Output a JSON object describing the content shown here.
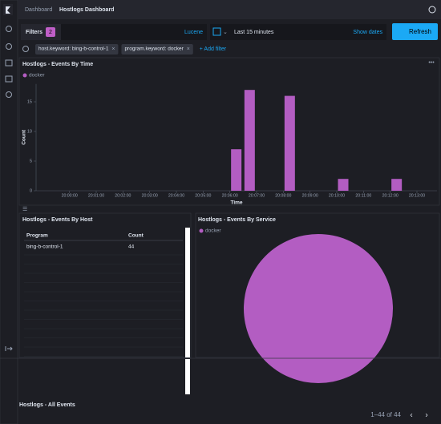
{
  "header": {
    "breadcrumbs": [
      "Dashboard",
      "Hostlogs Dashboard"
    ]
  },
  "query_bar": {
    "filters_label": "Filters",
    "filter_count": 2,
    "language": "Lucene",
    "time_range": "Last 15 minutes",
    "show_dates": "Show dates",
    "refresh": "Refresh"
  },
  "filters": [
    "host.keyword: bing-b-control-1",
    "program.keyword: docker"
  ],
  "add_filter": "+ Add filter",
  "chart_data": [
    {
      "type": "bar",
      "title": "Hostlogs - Events By Time",
      "x": [
        "20:06:00",
        "20:06:30",
        "20:08:00",
        "20:10:00",
        "20:12:00"
      ],
      "series": [
        {
          "name": "docker",
          "color": "#b35dc2",
          "values": [
            7,
            17,
            16,
            2,
            2
          ]
        }
      ],
      "xlim": [
        "19:58:45",
        "20:13:45"
      ],
      "xticks": [
        "20:00:00",
        "20:01:00",
        "20:02:00",
        "20:03:00",
        "20:04:00",
        "20:05:00",
        "20:06:00",
        "20:07:00",
        "20:08:00",
        "20:09:00",
        "20:10:00",
        "20:11:00",
        "20:12:00",
        "20:13:00"
      ],
      "ylim": [
        0,
        18
      ],
      "yticks": [
        0,
        5,
        10,
        15
      ],
      "x_label": "Time",
      "y_label": "Count"
    },
    {
      "type": "pie",
      "title": "Hostlogs - Events By Service",
      "categories": [
        "docker"
      ],
      "series": [
        {
          "name": "docker",
          "color": "#b35dc2",
          "values": [
            44
          ]
        }
      ]
    }
  ],
  "table": {
    "title": "Hostlogs - Events By Host",
    "columns": [
      "Program",
      "Count"
    ],
    "rows": [
      [
        "bing-b-control-1",
        44
      ]
    ]
  },
  "events_panel": {
    "title": "Hostlogs - All Events",
    "pagination": "1–44 of 44"
  }
}
